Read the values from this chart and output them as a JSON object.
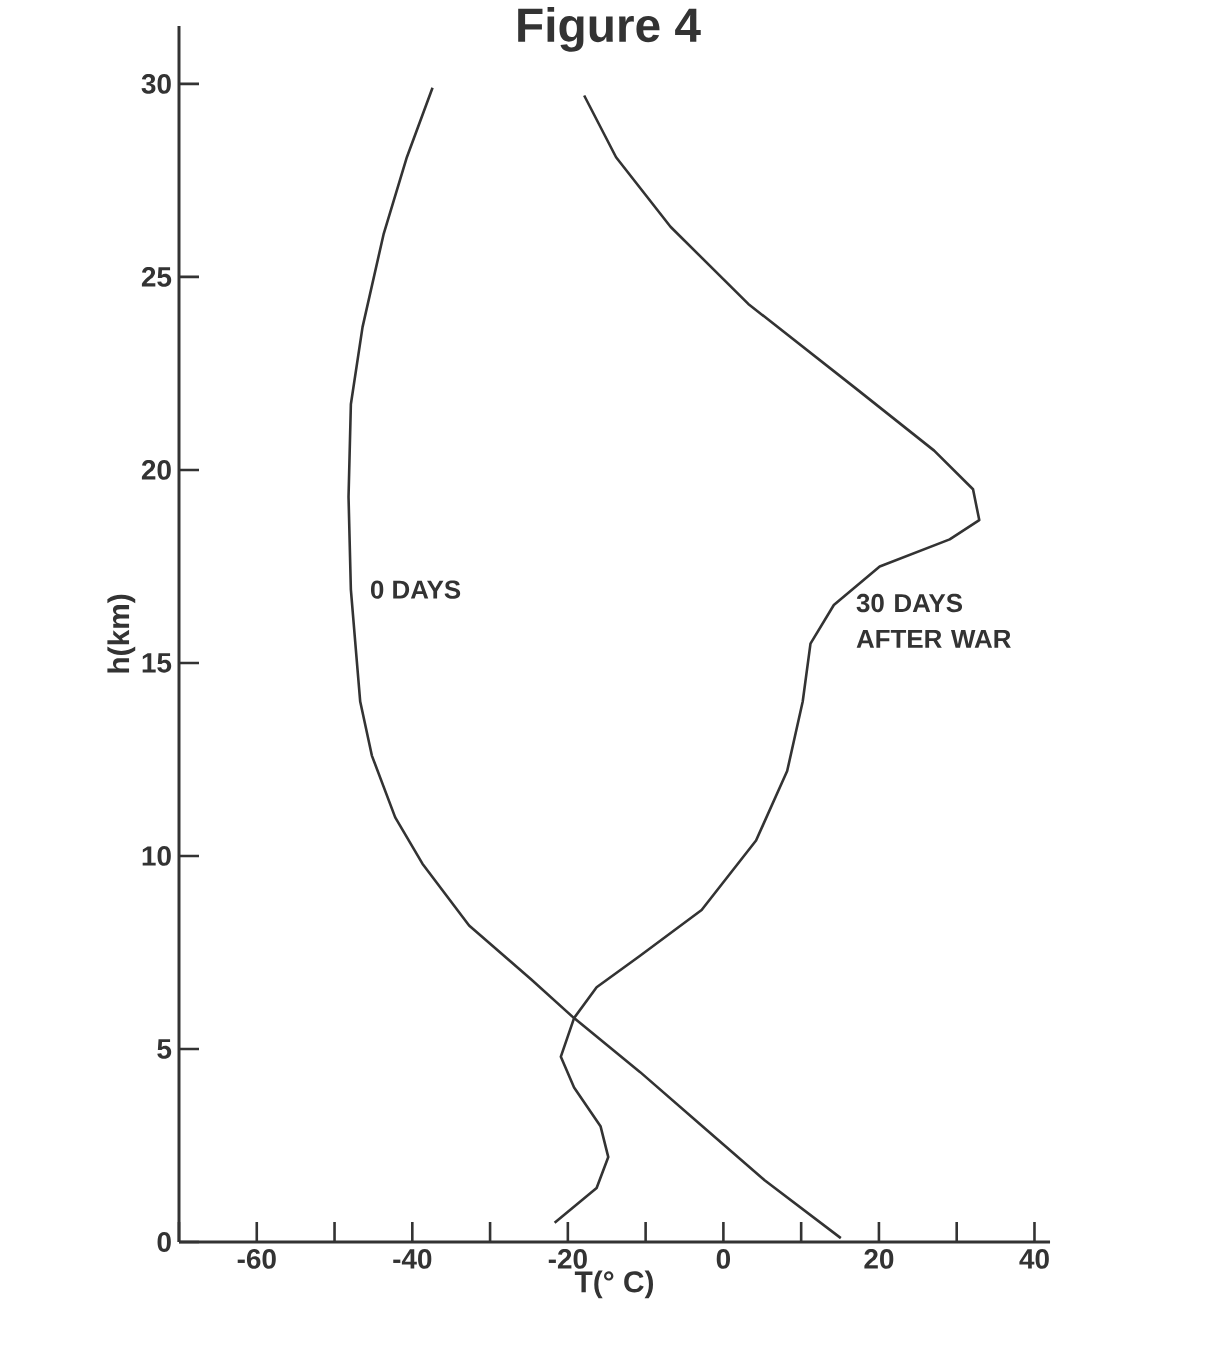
{
  "chart_data": {
    "type": "line",
    "title": "Figure 4",
    "xlabel": "T(° C)",
    "ylabel": "h(km)",
    "xlim": [
      -70,
      42
    ],
    "ylim": [
      0,
      31.5
    ],
    "xticks": [
      {
        "value": -70,
        "label": null
      },
      -60,
      {
        "value": -50,
        "label": null
      },
      -40,
      {
        "value": -30,
        "label": null
      },
      -20,
      {
        "value": -10,
        "label": null
      },
      0,
      {
        "value": 10,
        "label": null
      },
      20,
      {
        "value": 30,
        "label": null
      },
      40
    ],
    "yticks": [
      0,
      5,
      10,
      15,
      20,
      25,
      30
    ],
    "line_style": "solid",
    "series": [
      {
        "name": "0 DAYS",
        "color": "#333333",
        "x": [
          -37.4,
          -40.7,
          -43.7,
          -46.4,
          -47.9,
          -48.2,
          -47.9,
          -47.2,
          -46.7,
          -45.2,
          -42.2,
          -38.7,
          -32.7,
          -24.7,
          -19.2,
          -10.7,
          -2.7,
          5.3,
          15.1
        ],
        "values": [
          29.9,
          28.1,
          26.1,
          23.7,
          21.7,
          19.3,
          16.9,
          15.2,
          14.0,
          12.6,
          11.0,
          9.8,
          8.2,
          6.8,
          5.8,
          4.4,
          3.0,
          1.6,
          0.1
        ]
      },
      {
        "name": "30 DAYS AFTER WAR",
        "color": "#333333",
        "x": [
          -17.9,
          -13.8,
          -6.8,
          3.2,
          17.1,
          27.1,
          32.1,
          32.9,
          29.1,
          20.1,
          14.2,
          11.2,
          10.2,
          8.2,
          4.2,
          -2.8,
          -10.8,
          -16.3,
          -19.2,
          -20.9,
          -19.2,
          -15.8,
          -14.8,
          -16.3,
          -21.7
        ],
        "values": [
          29.7,
          28.1,
          26.3,
          24.3,
          22.1,
          20.5,
          19.5,
          18.7,
          18.2,
          17.5,
          16.5,
          15.5,
          14.0,
          12.2,
          10.4,
          8.6,
          7.4,
          6.6,
          5.8,
          4.8,
          4.0,
          3.0,
          2.2,
          1.4,
          0.5
        ]
      }
    ]
  }
}
